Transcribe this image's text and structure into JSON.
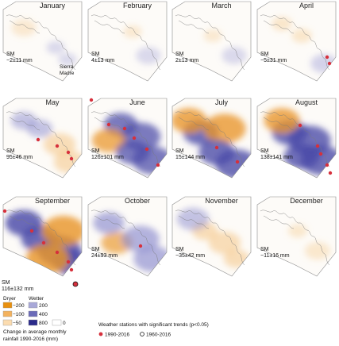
{
  "maps": [
    {
      "month": "January",
      "sm": "SM",
      "value": "−2±11 mm",
      "intensity": 0.12,
      "stations_recent": 0,
      "stations_long": 0,
      "places": [
        "Sierra",
        "Madre"
      ]
    },
    {
      "month": "February",
      "sm": "SM",
      "value": "4±13 mm",
      "intensity": 0.12,
      "stations_recent": 0,
      "stations_long": 0
    },
    {
      "month": "March",
      "sm": "SM",
      "value": "2±13 mm",
      "intensity": 0.12,
      "stations_recent": 0,
      "stations_long": 0
    },
    {
      "month": "April",
      "sm": "SM",
      "value": "−5±31 mm",
      "intensity": 0.2,
      "stations_recent": 2,
      "stations_long": 0
    },
    {
      "month": "May",
      "sm": "SM",
      "value": "95±46 mm",
      "intensity": 0.45,
      "stations_recent": 4,
      "stations_long": 0
    },
    {
      "month": "June",
      "sm": "SM",
      "value": "126±101 mm",
      "intensity": 0.8,
      "stations_recent": 6,
      "stations_long": 0
    },
    {
      "month": "July",
      "sm": "SM",
      "value": "15±144 mm",
      "intensity": 0.9,
      "stations_recent": 2,
      "stations_long": 0
    },
    {
      "month": "August",
      "sm": "SM",
      "value": "138±141 mm",
      "intensity": 0.9,
      "stations_recent": 5,
      "stations_long": 0
    },
    {
      "month": "September",
      "sm": "SM",
      "value": "116±132 mm",
      "intensity": 0.95,
      "stations_recent": 6,
      "stations_long": 1
    },
    {
      "month": "October",
      "sm": "SM",
      "value": "24±93 mm",
      "intensity": 0.7,
      "stations_recent": 1,
      "stations_long": 0
    },
    {
      "month": "November",
      "sm": "SM",
      "value": "−35±42 mm",
      "intensity": 0.45,
      "stations_recent": 0,
      "stations_long": 0
    },
    {
      "month": "December",
      "sm": "SM",
      "value": "−11±16 mm",
      "intensity": 0.15,
      "stations_recent": 0,
      "stations_long": 0
    }
  ],
  "legend": {
    "dryer_label": "Dryer",
    "wetter_label": "Wetter",
    "dryer_values": [
      "−200",
      "−100",
      "−50"
    ],
    "wetter_values": [
      "200",
      "400",
      "800"
    ],
    "zero_value": "0",
    "caption_line1": "Change in average monthly",
    "caption_line2": "rainfall 1990-2016 (mm)",
    "dryer_colors": [
      "#e8900f",
      "#f3b25e",
      "#fbdcb0"
    ],
    "wetter_colors": [
      "#a8a8d8",
      "#6a6ab8",
      "#2a2a8a"
    ],
    "zero_color": "#ffffff"
  },
  "stations_legend": {
    "title": "Weather stations with significant trends (p<0.05)",
    "recent_label": "1990-2016",
    "long_label": "1960-2016",
    "recent_color": "#d6303c"
  }
}
